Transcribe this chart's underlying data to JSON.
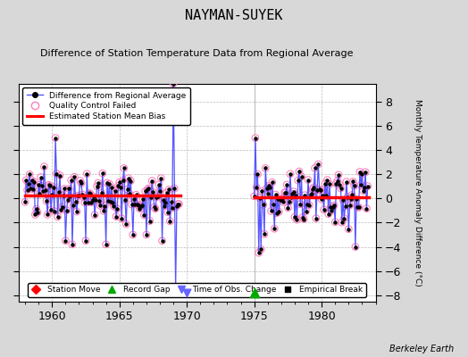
{
  "title": "NAYMAN-SUYEK",
  "subtitle": "Difference of Station Temperature Data from Regional Average",
  "ylabel_right": "Monthly Temperature Anomaly Difference (°C)",
  "credit": "Berkeley Earth",
  "xlim": [
    1957.5,
    1984.0
  ],
  "ylim": [
    -8.5,
    9.5
  ],
  "yticks": [
    -8,
    -6,
    -4,
    -2,
    0,
    2,
    4,
    6,
    8
  ],
  "xticks": [
    1960,
    1965,
    1970,
    1975,
    1980
  ],
  "bg_color": "#d8d8d8",
  "plot_bg_color": "#ffffff",
  "bias_level1": 0.25,
  "bias_level2": 0.1,
  "t1_start": 1958.0,
  "t1_end": 1969.5,
  "t2_start": 1975.0,
  "t2_end": 1983.5,
  "gap_line_x": 1975.0,
  "record_gap_x": 1975.0,
  "record_gap_y": -7.8,
  "time_obs_change_x": 1970.0,
  "time_obs_change_y": -7.8
}
